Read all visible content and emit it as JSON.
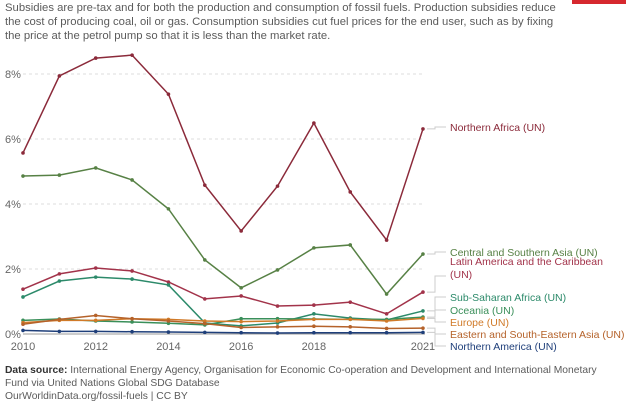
{
  "subtitle": "Subsidies are pre-tax and for both the production and consumption of fossil fuels. Production subsidies reduce the cost of producing coal, oil or gas. Consumption subsidies cut fuel prices for the end user, such as by fixing the price at the petrol pump so that it is less than the market rate.",
  "footer": {
    "source_label": "Data source:",
    "source_text": "International Energy Agency, Organisation for Economic Co-operation and Development and International Monetary Fund via United Nations Global SDG Database",
    "url": "OurWorldinData.org/fossil-fuels | CC BY"
  },
  "colors": {
    "accent": "#d6282e"
  },
  "chart_data": {
    "type": "line",
    "x": [
      2010,
      2011,
      2012,
      2013,
      2014,
      2015,
      2016,
      2017,
      2018,
      2019,
      2020,
      2021
    ],
    "x_ticks": [
      "2010",
      "2012",
      "2014",
      "2016",
      "2018",
      "2021"
    ],
    "y_ticks": [
      "0%",
      "2%",
      "4%",
      "6%",
      "8%"
    ],
    "ylim": [
      0,
      8.6
    ],
    "grid": true,
    "legend": "right (inline labels)",
    "series": [
      {
        "name": "Northern Africa (UN)",
        "color": "#8b2a3a",
        "values": [
          5.57,
          7.94,
          8.49,
          8.58,
          7.38,
          4.58,
          3.17,
          4.55,
          6.49,
          4.37,
          2.89,
          6.31
        ]
      },
      {
        "name": "Central and Southern Asia (UN)",
        "color": "#578145",
        "values": [
          4.86,
          4.89,
          5.11,
          4.74,
          3.85,
          2.28,
          1.42,
          1.97,
          2.65,
          2.74,
          1.23,
          2.46
        ]
      },
      {
        "name": "Latin America and the Caribbean (UN)",
        "color": "#a2334a",
        "values": [
          1.38,
          1.85,
          2.03,
          1.94,
          1.6,
          1.08,
          1.17,
          0.86,
          0.89,
          0.98,
          0.62,
          1.29
        ]
      },
      {
        "name": "Sub-Saharan Africa (UN)",
        "color": "#2c8a6a",
        "values": [
          1.14,
          1.63,
          1.75,
          1.69,
          1.51,
          0.34,
          0.25,
          0.34,
          0.62,
          0.49,
          0.43,
          0.71
        ]
      },
      {
        "name": "Oceania (UN)",
        "color": "#3a8f5a",
        "values": [
          0.42,
          0.46,
          0.4,
          0.37,
          0.33,
          0.28,
          0.47,
          0.47,
          0.46,
          0.45,
          0.45,
          0.52
        ]
      },
      {
        "name": "Europe (UN)",
        "color": "#d07a28",
        "values": [
          0.35,
          0.42,
          0.42,
          0.47,
          0.45,
          0.4,
          0.38,
          0.4,
          0.45,
          0.45,
          0.4,
          0.48
        ]
      },
      {
        "name": "Eastern and South-Eastern Asia (UN)",
        "color": "#b5622a",
        "values": [
          0.3,
          0.45,
          0.57,
          0.47,
          0.4,
          0.32,
          0.2,
          0.22,
          0.24,
          0.22,
          0.17,
          0.18
        ]
      },
      {
        "name": "Northern America (UN)",
        "color": "#1f3f7a",
        "values": [
          0.11,
          0.08,
          0.08,
          0.07,
          0.06,
          0.05,
          0.04,
          0.03,
          0.04,
          0.04,
          0.04,
          0.05
        ]
      }
    ]
  }
}
